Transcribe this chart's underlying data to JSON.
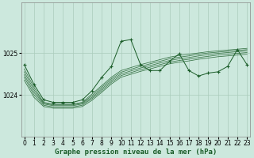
{
  "background_color": "#cce8dd",
  "grid_color": "#aaccbb",
  "line_color": "#1a5c28",
  "xlabel": "Graphe pression niveau de la mer (hPa)",
  "xlabel_fontsize": 6.5,
  "xticks": [
    0,
    1,
    2,
    3,
    4,
    5,
    6,
    7,
    8,
    9,
    10,
    11,
    12,
    13,
    14,
    15,
    16,
    17,
    18,
    19,
    20,
    21,
    22,
    23
  ],
  "yticks": [
    1024,
    1025
  ],
  "ylim": [
    1023.0,
    1026.2
  ],
  "xlim": [
    -0.3,
    23.3
  ],
  "trend_lines": [
    [
      1024.62,
      1024.18,
      1023.82,
      1023.78,
      1023.78,
      1023.78,
      1023.82,
      1024.02,
      1024.22,
      1024.42,
      1024.58,
      1024.65,
      1024.72,
      1024.78,
      1024.84,
      1024.9,
      1024.94,
      1024.97,
      1025.0,
      1025.03,
      1025.05,
      1025.07,
      1025.09,
      1025.11
    ],
    [
      1024.55,
      1024.12,
      1023.8,
      1023.76,
      1023.76,
      1023.76,
      1023.8,
      1023.98,
      1024.18,
      1024.38,
      1024.54,
      1024.61,
      1024.68,
      1024.74,
      1024.8,
      1024.86,
      1024.9,
      1024.93,
      1024.97,
      1025.0,
      1025.02,
      1025.04,
      1025.06,
      1025.08
    ],
    [
      1024.48,
      1024.06,
      1023.78,
      1023.74,
      1023.74,
      1023.74,
      1023.78,
      1023.94,
      1024.14,
      1024.34,
      1024.5,
      1024.57,
      1024.64,
      1024.7,
      1024.76,
      1024.82,
      1024.86,
      1024.89,
      1024.93,
      1024.96,
      1024.99,
      1025.01,
      1025.03,
      1025.05
    ],
    [
      1024.42,
      1024.0,
      1023.75,
      1023.71,
      1023.71,
      1023.71,
      1023.75,
      1023.91,
      1024.1,
      1024.3,
      1024.46,
      1024.53,
      1024.6,
      1024.66,
      1024.72,
      1024.78,
      1024.82,
      1024.85,
      1024.89,
      1024.92,
      1024.95,
      1024.97,
      1024.99,
      1025.01
    ],
    [
      1024.35,
      1023.94,
      1023.72,
      1023.68,
      1023.68,
      1023.68,
      1023.72,
      1023.87,
      1024.06,
      1024.26,
      1024.42,
      1024.49,
      1024.56,
      1024.62,
      1024.68,
      1024.74,
      1024.78,
      1024.81,
      1024.85,
      1024.88,
      1024.91,
      1024.93,
      1024.95,
      1024.97
    ]
  ],
  "main_series": [
    1024.72,
    1024.25,
    1023.88,
    1023.82,
    1023.82,
    1023.82,
    1023.88,
    1024.1,
    1024.42,
    1024.68,
    1025.28,
    1025.32,
    1024.72,
    1024.58,
    1024.58,
    1024.8,
    1024.98,
    1024.58,
    1024.45,
    1024.52,
    1024.55,
    1024.68,
    1025.08,
    1024.72
  ],
  "ticklabel_fontsize": 5.5
}
